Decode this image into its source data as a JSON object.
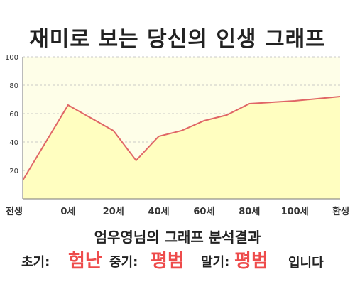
{
  "title": "재미로 보는 당신의 인생 그래프",
  "chart_data": {
    "type": "area",
    "x_labels": [
      "전생",
      "0세",
      "20세",
      "40세",
      "60세",
      "80세",
      "100세",
      "환생"
    ],
    "points": [
      {
        "x": 0,
        "y": 13
      },
      {
        "x": 1,
        "y": 66
      },
      {
        "x": 2,
        "y": 48
      },
      {
        "x": 2.5,
        "y": 27
      },
      {
        "x": 3,
        "y": 44
      },
      {
        "x": 3.5,
        "y": 48
      },
      {
        "x": 4,
        "y": 55
      },
      {
        "x": 4.5,
        "y": 59
      },
      {
        "x": 5,
        "y": 67
      },
      {
        "x": 6,
        "y": 69
      },
      {
        "x": 7,
        "y": 72
      }
    ],
    "y_ticks": [
      20,
      40,
      60,
      80,
      100
    ],
    "ylim": [
      0,
      100
    ],
    "colors": {
      "fill": "#fffec0",
      "line": "#e06666",
      "plot_bg": "#fefee8",
      "grid": "#bbbbbb"
    }
  },
  "result": {
    "caption": "엄우영님의 그래프 분석결과",
    "early_label": "초기:",
    "early_value": "험난",
    "mid_label": "중기:",
    "mid_value": "평범",
    "late_label": "말기:",
    "late_value": "평범",
    "tail": "입니다"
  }
}
